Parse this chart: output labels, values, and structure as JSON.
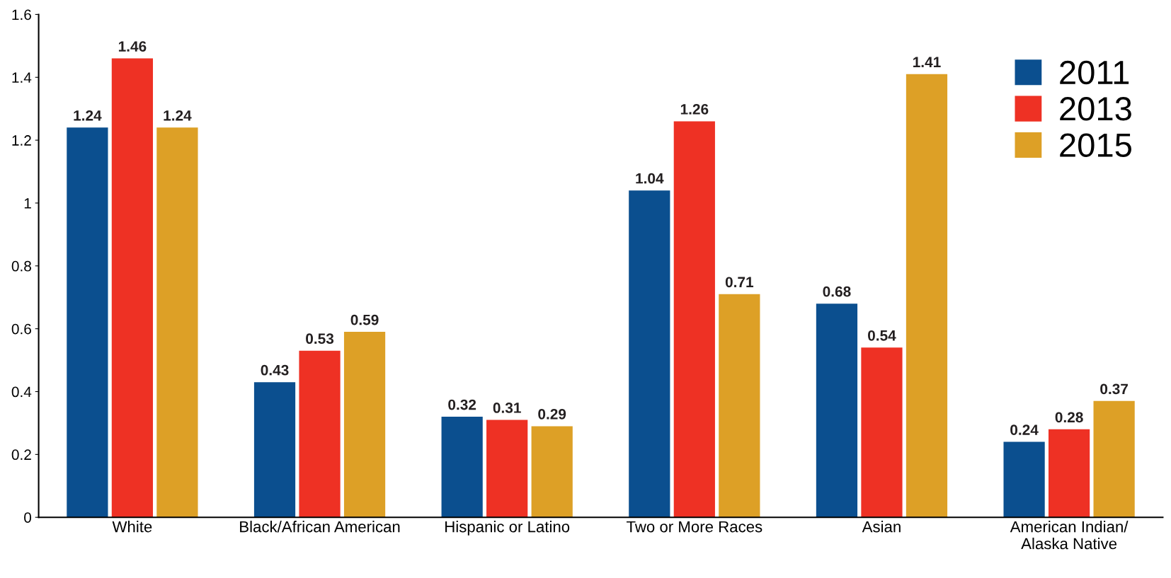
{
  "chart_data": {
    "type": "bar",
    "categories": [
      "White",
      "Black/African American",
      "Hispanic or Latino",
      "Two or More Races",
      "Asian",
      "American Indian/\nAlaska Native"
    ],
    "series": [
      {
        "name": "2011",
        "color": "#0b4f8f",
        "values": [
          1.24,
          0.43,
          0.32,
          1.04,
          0.68,
          0.24
        ]
      },
      {
        "name": "2013",
        "color": "#ee3124",
        "values": [
          1.46,
          0.53,
          0.31,
          1.26,
          0.54,
          0.28
        ]
      },
      {
        "name": "2015",
        "color": "#dda026",
        "values": [
          1.24,
          0.59,
          0.29,
          0.71,
          1.41,
          0.37
        ]
      }
    ],
    "ylim": [
      0,
      1.6
    ],
    "yticks": [
      0,
      0.2,
      0.4,
      0.6,
      0.8,
      1,
      1.2,
      1.4,
      1.6
    ],
    "data_labels": true,
    "legend": "top right",
    "grid": false
  }
}
